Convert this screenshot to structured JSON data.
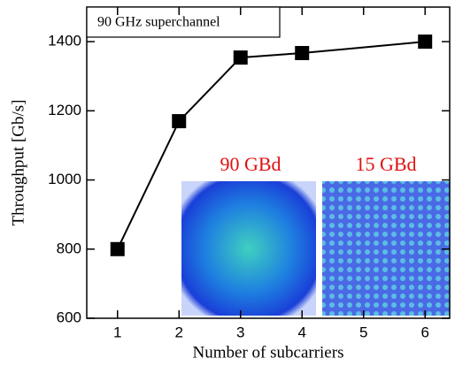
{
  "chart_data": {
    "type": "line",
    "xlabel": "Number of subcarriers",
    "ylabel": "Throughput [Gb/s]",
    "x": [
      1,
      2,
      3,
      4,
      6
    ],
    "series": [
      {
        "color": "#000000",
        "values": [
          800,
          1170,
          1354,
          1367,
          1400
        ]
      }
    ],
    "xlim": [
      0.5,
      6.4
    ],
    "xticks": [
      1,
      2,
      3,
      4,
      5,
      6
    ],
    "ylim": [
      600,
      1500
    ],
    "yticks": [
      600,
      800,
      1000,
      1200,
      1400
    ],
    "annotations": [
      "90 GHz superchannel",
      "90 GBd",
      "15 GBd"
    ]
  }
}
